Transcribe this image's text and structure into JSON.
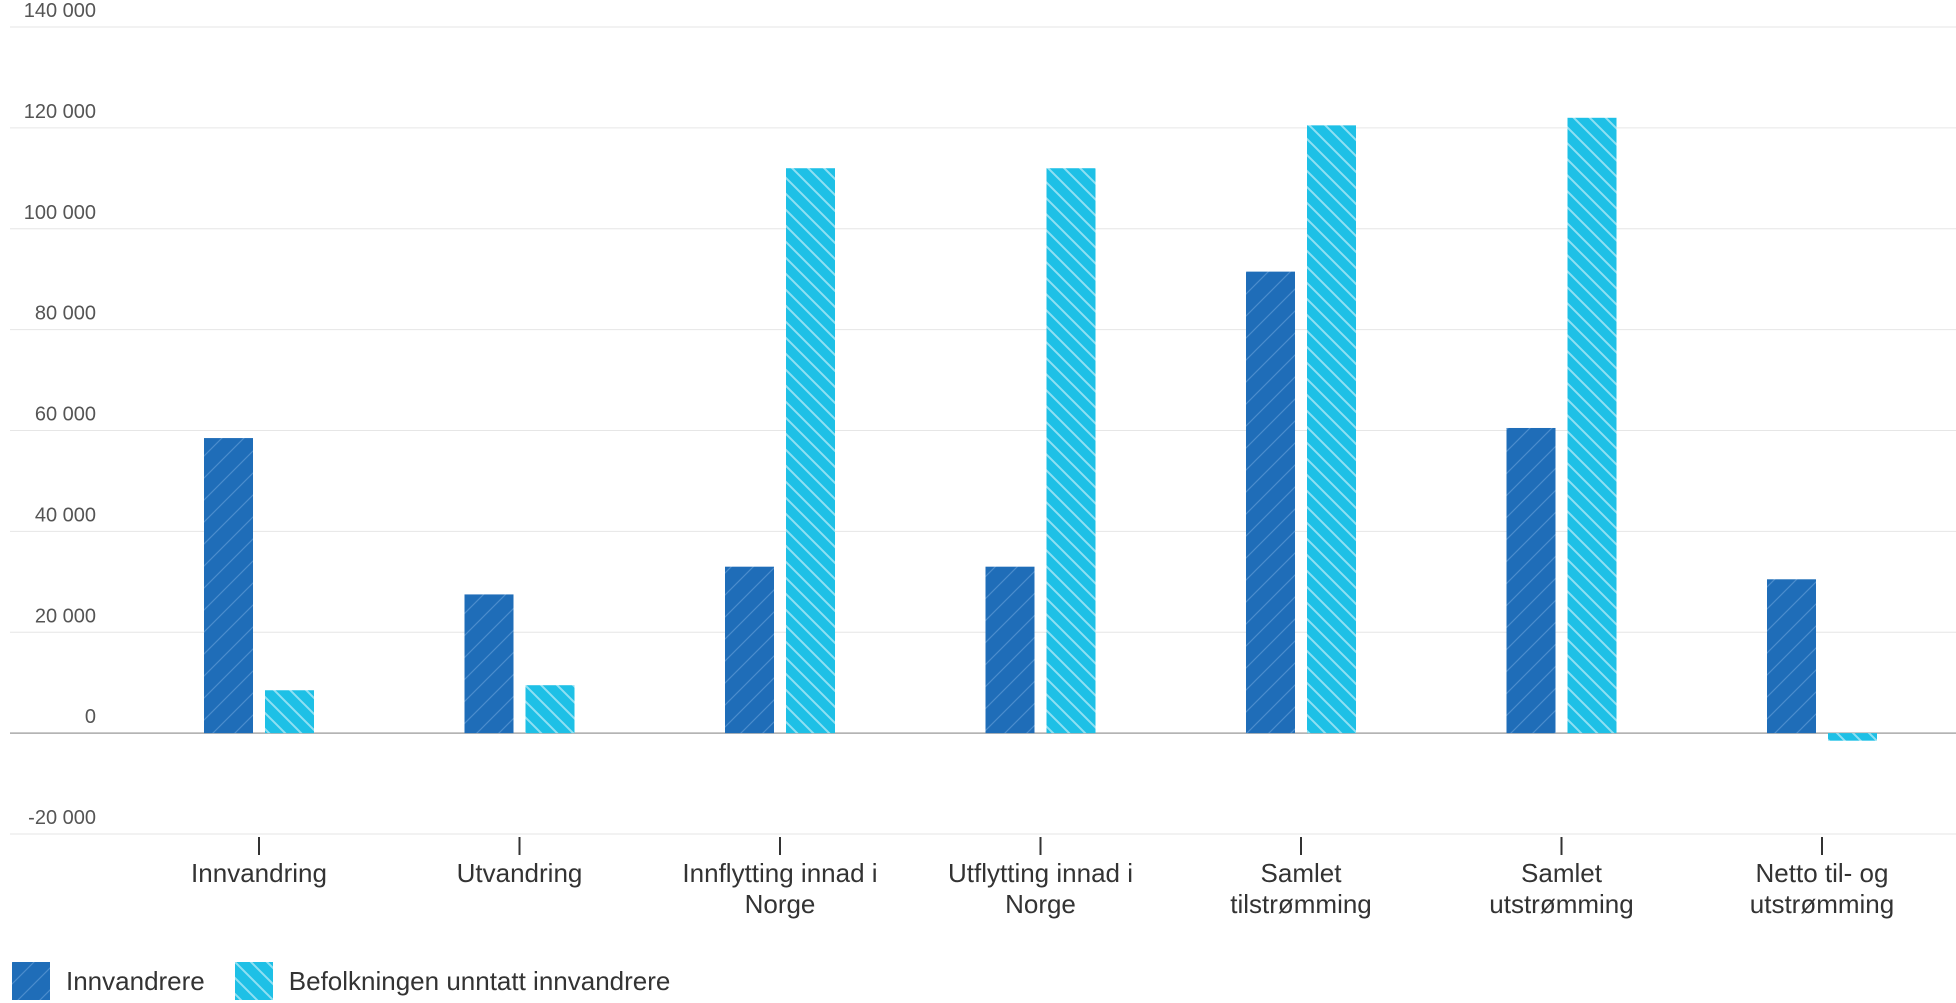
{
  "chart_data": {
    "type": "bar",
    "categories": [
      [
        "Innvandring"
      ],
      [
        "Utvandring"
      ],
      [
        "Innflytting innad i",
        "Norge"
      ],
      [
        "Utflytting innad i",
        "Norge"
      ],
      [
        "Samlet",
        "tilstrømming"
      ],
      [
        "Samlet",
        "utstrømming"
      ],
      [
        "Netto til- og",
        "utstrømming"
      ]
    ],
    "series": [
      {
        "name": "Innvandrere",
        "color": "#1f6db8",
        "pattern": "hatch-right",
        "values": [
          58500,
          27500,
          33000,
          33000,
          91500,
          60500,
          30500
        ]
      },
      {
        "name": "Befolkningen unntatt innvandrere",
        "color": "#1ec0e6",
        "pattern": "hatch-left",
        "values": [
          8500,
          9500,
          112000,
          112000,
          120500,
          122000,
          -1500
        ]
      }
    ],
    "ylim": [
      -20000,
      140000
    ],
    "yticks": [
      140000,
      120000,
      100000,
      80000,
      60000,
      40000,
      20000,
      0,
      -20000
    ],
    "ytick_labels": [
      "140 000",
      "120 000",
      "100 000",
      "80 000",
      "60 000",
      "40 000",
      "20 000",
      "0",
      "-20 000"
    ],
    "grid": true,
    "legend_position": "bottom-left",
    "title": "",
    "xlabel": "",
    "ylabel": ""
  }
}
